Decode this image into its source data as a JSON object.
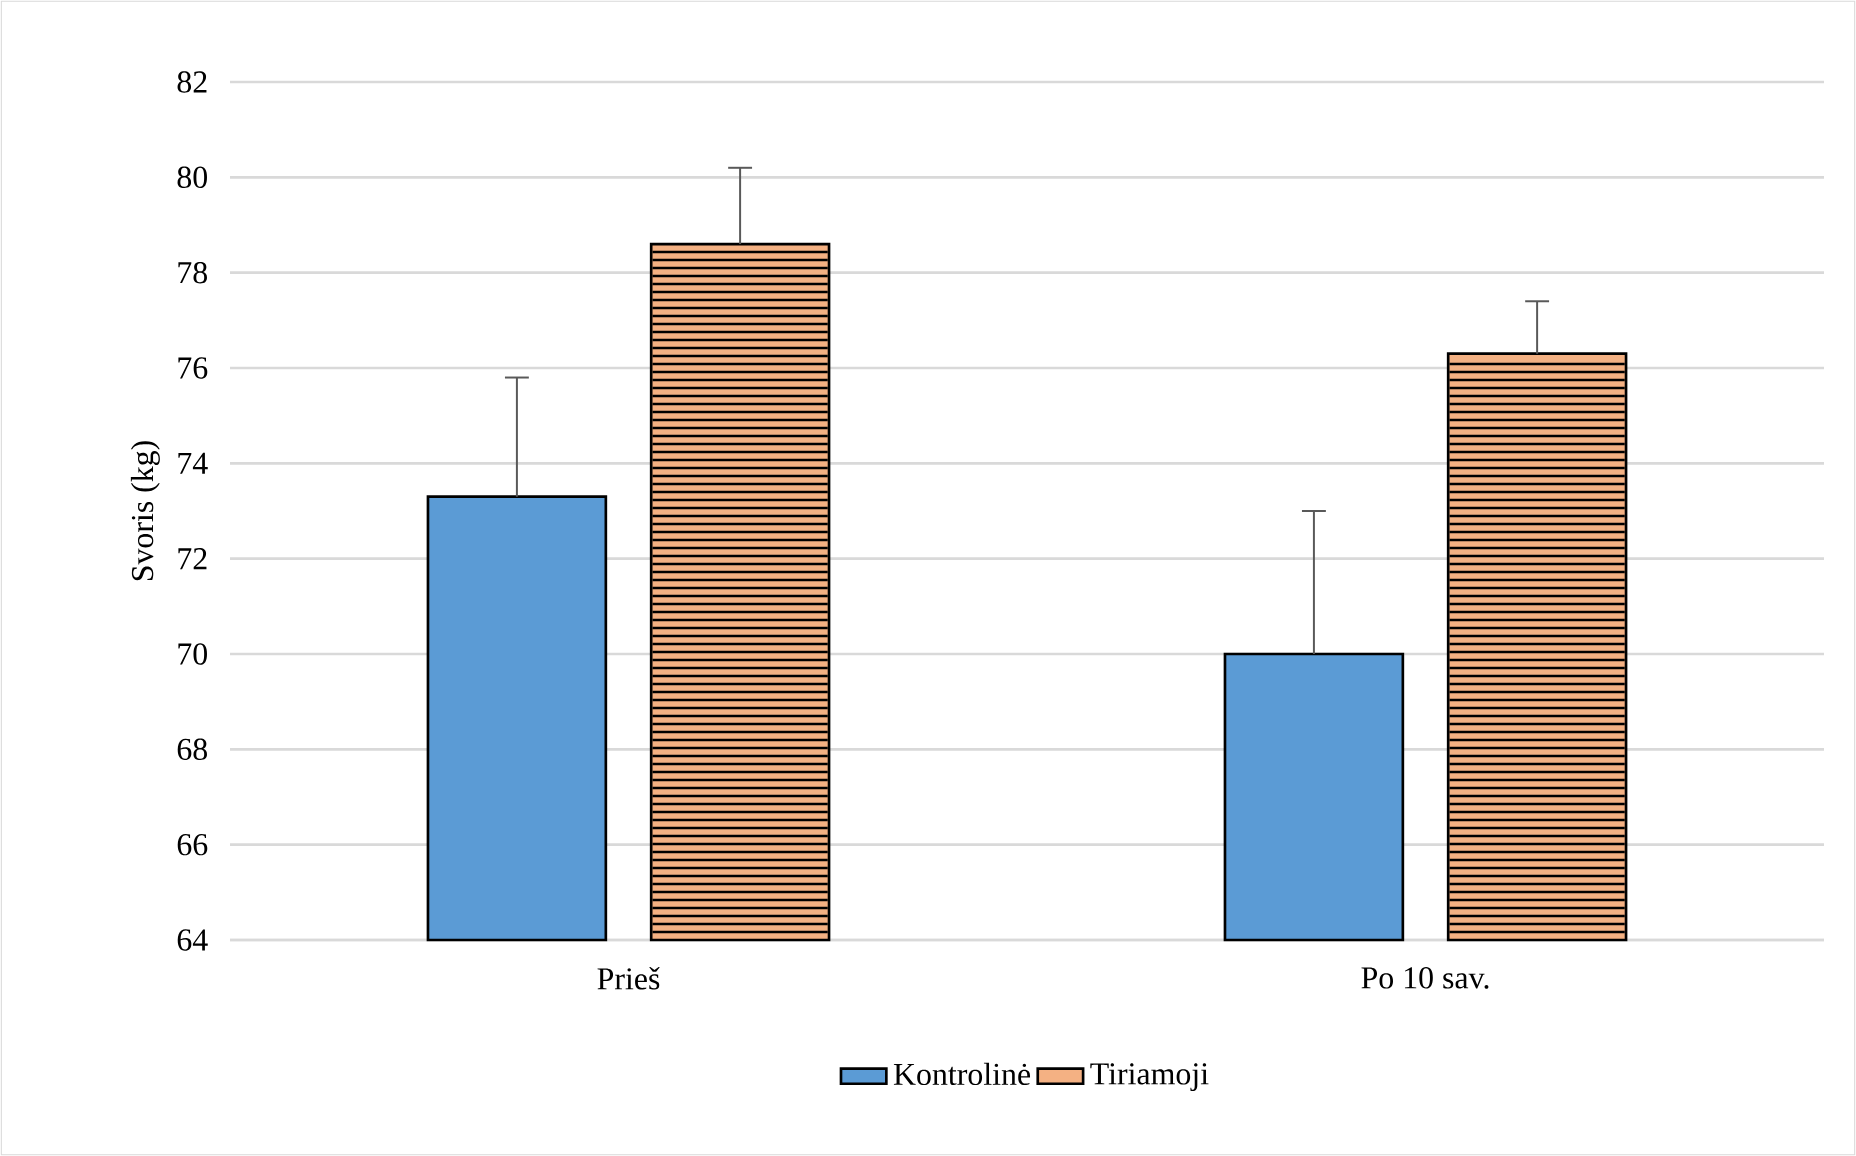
{
  "chart_data": {
    "type": "bar",
    "ylabel": "Svoris (kg)",
    "categories": [
      "Prieš",
      "Po 10 sav."
    ],
    "series": [
      {
        "name": "Kontrolinė",
        "color": "#5b9bd5",
        "values": [
          73.3,
          70.0
        ],
        "errors": [
          [
            73.3,
            75.8
          ],
          [
            70.0,
            73.0
          ]
        ]
      },
      {
        "name": "Tiriamoji",
        "color": "#f4b183",
        "values": [
          78.6,
          76.3
        ],
        "errors": [
          [
            78.6,
            80.2
          ],
          [
            76.3,
            77.4
          ]
        ]
      }
    ],
    "ylim": [
      64,
      82
    ],
    "yticks": [
      64,
      66,
      68,
      70,
      72,
      74,
      76,
      78,
      80,
      82
    ],
    "grid": "y",
    "legend": "bottom"
  }
}
